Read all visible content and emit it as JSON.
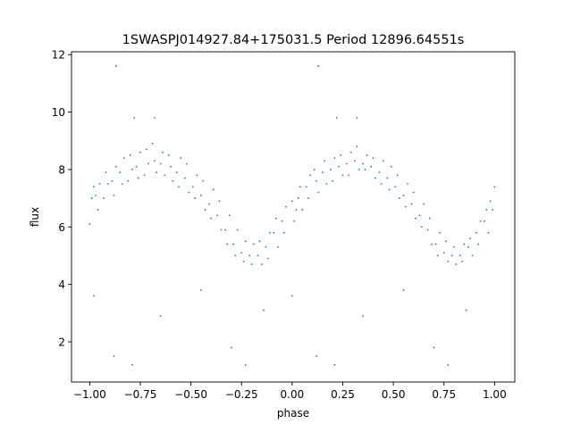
{
  "chart_data": {
    "type": "scatter",
    "title": "1SWASPJ014927.84+175031.5 Period 12896.64551s",
    "xlabel": "phase",
    "ylabel": "flux",
    "xlim": [
      -1.09,
      1.1
    ],
    "ylim": [
      0.6,
      12.1
    ],
    "xticks": [
      -1.0,
      -0.75,
      -0.5,
      -0.25,
      0.0,
      0.25,
      0.5,
      0.75,
      1.0
    ],
    "xtick_labels": [
      "−1.00",
      "−0.75",
      "−0.50",
      "−0.25",
      "0.00",
      "0.25",
      "0.50",
      "0.75",
      "1.00"
    ],
    "yticks": [
      2,
      4,
      6,
      8,
      10,
      12
    ],
    "ytick_labels": [
      "2",
      "4",
      "6",
      "8",
      "10",
      "12"
    ],
    "grid": false,
    "color": "#1f77b4",
    "points": [
      [
        -1.0,
        6.1
      ],
      [
        -0.99,
        7.0
      ],
      [
        -0.98,
        7.4
      ],
      [
        -0.96,
        6.6
      ],
      [
        -0.95,
        7.5
      ],
      [
        -0.97,
        7.1
      ],
      [
        -0.92,
        7.9
      ],
      [
        -0.93,
        7.0
      ],
      [
        -0.91,
        7.5
      ],
      [
        -0.88,
        7.1
      ],
      [
        -0.87,
        8.1
      ],
      [
        -0.89,
        7.6
      ],
      [
        -0.84,
        7.5
      ],
      [
        -0.83,
        8.4
      ],
      [
        -0.85,
        7.9
      ],
      [
        -0.8,
        8.5
      ],
      [
        -0.81,
        7.6
      ],
      [
        -0.79,
        8.0
      ],
      [
        -0.76,
        7.7
      ],
      [
        -0.75,
        8.6
      ],
      [
        -0.77,
        8.1
      ],
      [
        -0.72,
        8.7
      ],
      [
        -0.73,
        7.8
      ],
      [
        -0.71,
        8.2
      ],
      [
        -0.68,
        8.3
      ],
      [
        -0.67,
        7.9
      ],
      [
        -0.69,
        8.9
      ],
      [
        -0.64,
        8.6
      ],
      [
        -0.63,
        7.8
      ],
      [
        -0.65,
        8.2
      ],
      [
        -0.6,
        8.1
      ],
      [
        -0.59,
        7.6
      ],
      [
        -0.61,
        8.5
      ],
      [
        -0.56,
        7.4
      ],
      [
        -0.55,
        8.4
      ],
      [
        -0.57,
        7.9
      ],
      [
        -0.52,
        8.2
      ],
      [
        -0.51,
        7.2
      ],
      [
        -0.53,
        7.7
      ],
      [
        -0.48,
        7.0
      ],
      [
        -0.47,
        7.8
      ],
      [
        -0.49,
        7.4
      ],
      [
        -0.44,
        7.6
      ],
      [
        -0.43,
        6.6
      ],
      [
        -0.45,
        7.1
      ],
      [
        -0.4,
        6.3
      ],
      [
        -0.39,
        7.3
      ],
      [
        -0.41,
        6.8
      ],
      [
        -0.36,
        6.9
      ],
      [
        -0.35,
        5.9
      ],
      [
        -0.37,
        6.4
      ],
      [
        -0.32,
        5.4
      ],
      [
        -0.31,
        6.4
      ],
      [
        -0.33,
        5.9
      ],
      [
        -0.28,
        5.0
      ],
      [
        -0.27,
        5.9
      ],
      [
        -0.29,
        5.4
      ],
      [
        -0.24,
        4.8
      ],
      [
        -0.23,
        5.5
      ],
      [
        -0.25,
        5.1
      ],
      [
        -0.2,
        4.7
      ],
      [
        -0.19,
        5.4
      ],
      [
        -0.21,
        5.0
      ],
      [
        -0.16,
        5.5
      ],
      [
        -0.15,
        4.7
      ],
      [
        -0.17,
        5.0
      ],
      [
        -0.12,
        4.9
      ],
      [
        -0.11,
        5.8
      ],
      [
        -0.13,
        5.3
      ],
      [
        -0.08,
        6.3
      ],
      [
        -0.07,
        5.3
      ],
      [
        -0.09,
        5.8
      ],
      [
        -0.04,
        5.8
      ],
      [
        -0.03,
        6.7
      ],
      [
        -0.05,
        6.2
      ],
      [
        0.0,
        6.9
      ],
      [
        0.01,
        6.2
      ],
      [
        0.02,
        6.6
      ],
      [
        0.04,
        7.4
      ],
      [
        0.05,
        6.6
      ],
      [
        0.03,
        7.0
      ],
      [
        0.08,
        7.0
      ],
      [
        0.09,
        7.8
      ],
      [
        0.07,
        7.4
      ],
      [
        0.12,
        7.6
      ],
      [
        0.13,
        7.2
      ],
      [
        0.11,
        8.0
      ],
      [
        0.16,
        8.3
      ],
      [
        0.17,
        7.5
      ],
      [
        0.15,
        7.9
      ],
      [
        0.2,
        7.6
      ],
      [
        0.21,
        8.4
      ],
      [
        0.19,
        8.0
      ],
      [
        0.24,
        8.5
      ],
      [
        0.25,
        7.8
      ],
      [
        0.23,
        8.1
      ],
      [
        0.28,
        7.8
      ],
      [
        0.29,
        8.6
      ],
      [
        0.27,
        8.2
      ],
      [
        0.32,
        8.8
      ],
      [
        0.33,
        8.0
      ],
      [
        0.31,
        8.3
      ],
      [
        0.36,
        8.0
      ],
      [
        0.37,
        8.5
      ],
      [
        0.35,
        8.2
      ],
      [
        0.4,
        8.4
      ],
      [
        0.41,
        7.7
      ],
      [
        0.39,
        8.1
      ],
      [
        0.44,
        7.5
      ],
      [
        0.45,
        8.3
      ],
      [
        0.43,
        7.9
      ],
      [
        0.48,
        7.3
      ],
      [
        0.49,
        8.1
      ],
      [
        0.47,
        7.7
      ],
      [
        0.52,
        7.8
      ],
      [
        0.53,
        7.0
      ],
      [
        0.51,
        7.4
      ],
      [
        0.56,
        6.7
      ],
      [
        0.57,
        7.5
      ],
      [
        0.55,
        7.1
      ],
      [
        0.6,
        7.2
      ],
      [
        0.61,
        6.3
      ],
      [
        0.59,
        6.8
      ],
      [
        0.64,
        6.0
      ],
      [
        0.65,
        6.8
      ],
      [
        0.63,
        6.4
      ],
      [
        0.68,
        6.3
      ],
      [
        0.69,
        5.4
      ],
      [
        0.67,
        5.9
      ],
      [
        0.72,
        5.0
      ],
      [
        0.73,
        5.8
      ],
      [
        0.71,
        5.4
      ],
      [
        0.76,
        5.5
      ],
      [
        0.77,
        4.8
      ],
      [
        0.75,
        5.1
      ],
      [
        0.8,
        5.3
      ],
      [
        0.81,
        4.7
      ],
      [
        0.79,
        5.0
      ],
      [
        0.84,
        4.8
      ],
      [
        0.85,
        5.4
      ],
      [
        0.83,
        5.0
      ],
      [
        0.88,
        5.6
      ],
      [
        0.89,
        5.0
      ],
      [
        0.87,
        5.3
      ],
      [
        0.92,
        5.4
      ],
      [
        0.93,
        6.2
      ],
      [
        0.91,
        5.8
      ],
      [
        0.96,
        6.6
      ],
      [
        0.97,
        5.8
      ],
      [
        0.95,
        6.2
      ],
      [
        1.0,
        7.4
      ],
      [
        0.99,
        6.6
      ],
      [
        0.98,
        6.9
      ],
      [
        -0.87,
        11.6
      ],
      [
        0.13,
        11.6
      ],
      [
        -0.78,
        9.8
      ],
      [
        0.22,
        9.8
      ],
      [
        -0.68,
        9.8
      ],
      [
        0.32,
        9.8
      ],
      [
        -0.88,
        1.5
      ],
      [
        0.12,
        1.5
      ],
      [
        -0.79,
        1.2
      ],
      [
        0.21,
        1.2
      ],
      [
        -0.65,
        2.9
      ],
      [
        0.35,
        2.9
      ],
      [
        -0.23,
        1.2
      ],
      [
        0.77,
        1.2
      ],
      [
        -0.14,
        3.1
      ],
      [
        0.86,
        3.1
      ],
      [
        -0.98,
        3.6
      ],
      [
        0.0,
        3.6
      ],
      [
        -0.45,
        3.8
      ],
      [
        0.55,
        3.8
      ],
      [
        -0.3,
        1.8
      ],
      [
        0.7,
        1.8
      ]
    ]
  }
}
